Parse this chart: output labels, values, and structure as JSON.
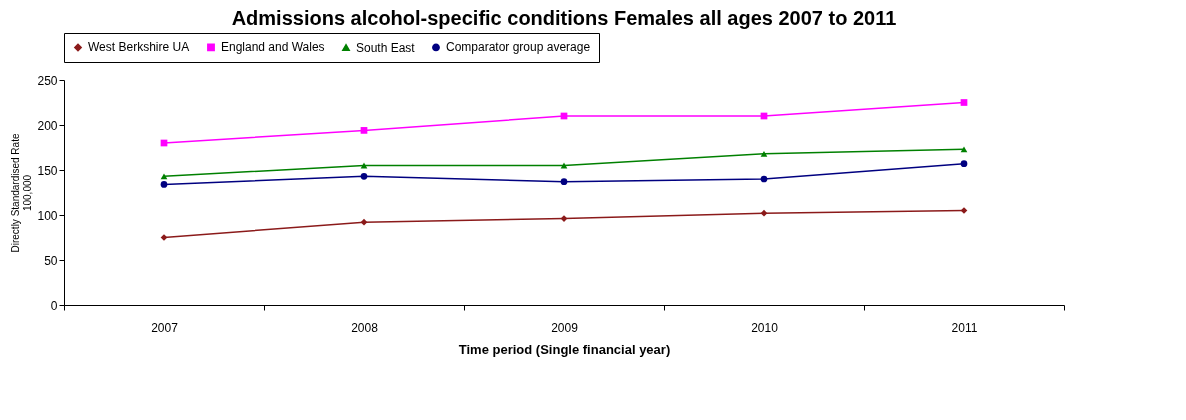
{
  "chart_data": {
    "type": "line",
    "title": "Admissions alcohol-specific conditions Females all ages 2007 to 2011",
    "xlabel": "Time period (Single financial year)",
    "ylabel": "Directly Standardised Rate\n100,000",
    "categories": [
      "2007",
      "2008",
      "2009",
      "2010",
      "2011"
    ],
    "ylim": [
      0,
      250
    ],
    "yticks": [
      0,
      50,
      100,
      150,
      200,
      250
    ],
    "grid": false,
    "legend": "top",
    "series": [
      {
        "name": "West Berkshire UA",
        "color": "#8b1a1a",
        "marker": "diamond",
        "values": [
          75,
          92,
          96,
          102,
          105
        ]
      },
      {
        "name": "England and Wales",
        "color": "#ff00ff",
        "marker": "square",
        "values": [
          180,
          194,
          210,
          210,
          225
        ]
      },
      {
        "name": "South East",
        "color": "#008000",
        "marker": "triangle",
        "values": [
          143,
          155,
          155,
          168,
          173
        ]
      },
      {
        "name": "Comparator group average",
        "color": "#000080",
        "marker": "circle",
        "values": [
          134,
          143,
          137,
          140,
          157
        ]
      }
    ]
  }
}
